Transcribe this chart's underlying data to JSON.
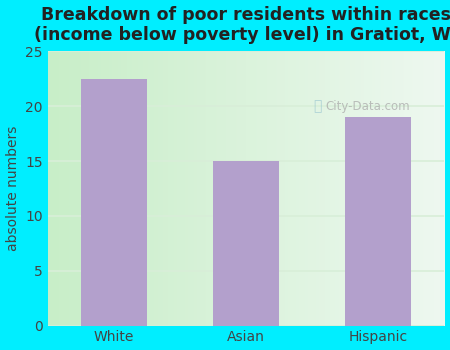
{
  "title": "Breakdown of poor residents within races\n(income below poverty level) in Gratiot, WI",
  "categories": [
    "White",
    "Asian",
    "Hispanic"
  ],
  "values": [
    22.5,
    15.0,
    19.0
  ],
  "bar_color": "#b3a0cc",
  "ylabel": "absolute numbers",
  "ylim": [
    0,
    25
  ],
  "yticks": [
    0,
    5,
    10,
    15,
    20,
    25
  ],
  "bg_outer": "#00eeff",
  "bg_plot_left": "#c8eec8",
  "bg_plot_right": "#eef8f0",
  "grid_color": "#d8eed8",
  "title_fontsize": 12.5,
  "ylabel_fontsize": 10,
  "tick_fontsize": 10,
  "bar_width": 0.5,
  "watermark": "City-Data.com"
}
